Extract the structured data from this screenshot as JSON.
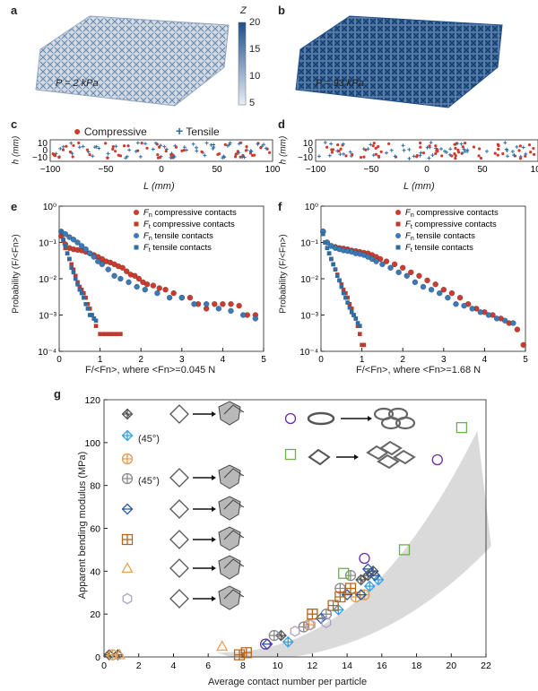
{
  "panels": {
    "a": {
      "letter": "a",
      "pressure": "P = 2 kPa"
    },
    "b": {
      "letter": "b",
      "pressure": "P = 93 kPa"
    },
    "colorbar": {
      "label": "Z",
      "ticks": [
        "20",
        "15",
        "10",
        "5"
      ],
      "colors": [
        "#1f4e8c",
        "#e8eef5"
      ]
    },
    "c": {
      "letter": "c"
    },
    "d": {
      "letter": "d"
    },
    "e": {
      "letter": "e"
    },
    "f": {
      "letter": "f"
    },
    "g": {
      "letter": "g"
    }
  },
  "strip_legend": {
    "compressive": "Compressive",
    "tensile": "Tensile"
  },
  "strip_axes": {
    "ylabel": "h (mm)",
    "xlabel": "L (mm)",
    "yticks": [
      "10",
      "0",
      "−10"
    ],
    "xticks": [
      "−100",
      "−50",
      "0",
      "50",
      "100"
    ]
  },
  "prob_legend": [
    {
      "sym": "Fn",
      "text": "compressive contacts",
      "marker": "circle",
      "color": "#d03a2c"
    },
    {
      "sym": "Ft",
      "text": "compressive contacts",
      "marker": "square",
      "color": "#c0392b"
    },
    {
      "sym": "Fn",
      "text": "tensile contacts",
      "marker": "circle",
      "color": "#3a7ab8"
    },
    {
      "sym": "Ft",
      "text": "tensile contacts",
      "marker": "square",
      "color": "#2e6da4"
    }
  ],
  "prob_axes": {
    "ylabel": "Probability (F/<Fn>)",
    "xticks": [
      "0",
      "1",
      "2",
      "3",
      "4",
      "5"
    ],
    "yticks": [
      "10⁰",
      "10⁻¹",
      "10⁻²",
      "10⁻³",
      "10⁻⁴"
    ]
  },
  "e_xlabel": "F/<Fn>, where <Fn>=0.045 N",
  "f_xlabel": "F/<Fn>, where <Fn>=1.68 N",
  "g_axes": {
    "xlabel": "Average contact number per particle",
    "ylabel": "Apparent bending modulus (MPa)",
    "xticks": [
      "0",
      "2",
      "4",
      "6",
      "8",
      "10",
      "12",
      "14",
      "16",
      "18",
      "20",
      "22"
    ],
    "yticks": [
      "0",
      "20",
      "40",
      "60",
      "80",
      "100",
      "120"
    ]
  },
  "g_legend_angle": [
    "(45°)",
    "(45°)"
  ],
  "chart_data": [
    {
      "type": "scatter",
      "panel": "e",
      "xlabel": "F/<Fn>, where <Fn>=0.045 N",
      "ylabel": "Probability (F/<Fn>)",
      "xlim": [
        0,
        5
      ],
      "ylim": [
        0.0001,
        1
      ],
      "yscale": "log",
      "series": [
        {
          "name": "Fn compressive contacts",
          "x": [
            0.05,
            0.15,
            0.25,
            0.35,
            0.45,
            0.55,
            0.65,
            0.75,
            0.85,
            0.95,
            1.05,
            1.15,
            1.25,
            1.35,
            1.45,
            1.55,
            1.65,
            1.75,
            1.85,
            1.95,
            2.05,
            2.15,
            2.3,
            2.45,
            2.6,
            2.8,
            3.0,
            3.2,
            3.4,
            3.6,
            3.8,
            4.0,
            4.2,
            4.4,
            4.6,
            4.8
          ],
          "y": [
            0.15,
            0.09,
            0.07,
            0.065,
            0.062,
            0.06,
            0.055,
            0.05,
            0.045,
            0.04,
            0.035,
            0.03,
            0.028,
            0.025,
            0.022,
            0.02,
            0.016,
            0.013,
            0.012,
            0.01,
            0.008,
            0.007,
            0.0065,
            0.0055,
            0.005,
            0.004,
            0.003,
            0.003,
            0.002,
            0.0015,
            0.002,
            0.002,
            0.002,
            0.0018,
            0.001,
            0.001
          ]
        },
        {
          "name": "Ft compressive contacts",
          "x": [
            0.05,
            0.1,
            0.15,
            0.2,
            0.25,
            0.3,
            0.35,
            0.4,
            0.45,
            0.5,
            0.55,
            0.6,
            0.65,
            0.7,
            0.75,
            0.8,
            0.85,
            0.9,
            1.0,
            1.1,
            1.2,
            1.3,
            1.4,
            1.5
          ],
          "y": [
            0.16,
            0.11,
            0.07,
            0.05,
            0.035,
            0.025,
            0.018,
            0.012,
            0.008,
            0.006,
            0.005,
            0.004,
            0.003,
            0.002,
            0.0015,
            0.001,
            0.0008,
            0.0005,
            0.0003,
            0.0003,
            0.0003,
            0.0003,
            0.0003,
            0.0003
          ]
        },
        {
          "name": "Fn tensile contacts",
          "x": [
            0.05,
            0.15,
            0.25,
            0.35,
            0.45,
            0.55,
            0.65,
            0.75,
            0.85,
            0.95,
            1.05,
            1.2,
            1.35,
            1.5,
            1.7,
            1.9,
            2.1,
            2.4,
            2.7,
            3.0,
            3.3,
            3.6,
            3.9,
            4.2,
            4.5,
            4.8
          ],
          "y": [
            0.2,
            0.17,
            0.14,
            0.12,
            0.1,
            0.08,
            0.065,
            0.05,
            0.04,
            0.03,
            0.025,
            0.018,
            0.012,
            0.01,
            0.008,
            0.006,
            0.005,
            0.004,
            0.003,
            0.003,
            0.002,
            0.002,
            0.0015,
            0.0013,
            0.001,
            0.0008
          ]
        },
        {
          "name": "Ft tensile contacts",
          "x": [
            0.05,
            0.1,
            0.15,
            0.2,
            0.25,
            0.3,
            0.35,
            0.4,
            0.45,
            0.5,
            0.55,
            0.6,
            0.65,
            0.7,
            0.75,
            0.8,
            0.85,
            0.9
          ],
          "y": [
            0.2,
            0.12,
            0.08,
            0.05,
            0.035,
            0.02,
            0.015,
            0.01,
            0.007,
            0.005,
            0.004,
            0.003,
            0.002,
            0.0015,
            0.001,
            0.001,
            0.0008,
            0.0007
          ]
        }
      ]
    },
    {
      "type": "scatter",
      "panel": "f",
      "xlabel": "F/<Fn>, where <Fn>=1.68 N",
      "ylabel": "Probability (F/<Fn>)",
      "xlim": [
        0,
        5
      ],
      "ylim": [
        0.0001,
        1
      ],
      "yscale": "log",
      "series": [
        {
          "name": "Fn compressive contacts",
          "x": [
            0.05,
            0.15,
            0.25,
            0.35,
            0.45,
            0.55,
            0.65,
            0.75,
            0.85,
            0.95,
            1.05,
            1.15,
            1.25,
            1.35,
            1.45,
            1.6,
            1.8,
            2.0,
            2.2,
            2.4,
            2.6,
            2.8,
            3.0,
            3.2,
            3.4,
            3.6,
            3.8,
            4.0,
            4.2,
            4.4,
            4.6,
            4.8,
            4.95
          ],
          "y": [
            0.2,
            0.1,
            0.08,
            0.075,
            0.07,
            0.068,
            0.065,
            0.06,
            0.058,
            0.055,
            0.052,
            0.05,
            0.045,
            0.04,
            0.035,
            0.03,
            0.025,
            0.02,
            0.015,
            0.012,
            0.009,
            0.007,
            0.005,
            0.004,
            0.003,
            0.002,
            0.0015,
            0.0012,
            0.001,
            0.0008,
            0.0006,
            0.0004,
            0.00015
          ]
        },
        {
          "name": "Ft compressive contacts",
          "x": [
            0.05,
            0.1,
            0.15,
            0.2,
            0.25,
            0.3,
            0.35,
            0.4,
            0.45,
            0.5,
            0.55,
            0.6,
            0.65,
            0.7,
            0.75,
            0.8,
            0.85,
            0.9,
            0.95,
            1.0,
            1.05
          ],
          "y": [
            0.18,
            0.1,
            0.07,
            0.05,
            0.035,
            0.025,
            0.018,
            0.013,
            0.009,
            0.007,
            0.005,
            0.004,
            0.003,
            0.002,
            0.0015,
            0.001,
            0.0008,
            0.0005,
            0.0003,
            0.00015,
            0.00015
          ]
        },
        {
          "name": "Fn tensile contacts",
          "x": [
            0.05,
            0.15,
            0.25,
            0.35,
            0.45,
            0.55,
            0.65,
            0.75,
            0.85,
            0.95,
            1.05,
            1.15,
            1.25,
            1.35,
            1.5,
            1.7,
            1.9,
            2.1,
            2.3,
            2.5,
            2.7,
            2.9,
            3.1,
            3.3,
            3.5,
            3.7,
            3.9,
            4.1,
            4.3,
            4.5,
            4.7
          ],
          "y": [
            0.2,
            0.1,
            0.08,
            0.07,
            0.065,
            0.06,
            0.058,
            0.055,
            0.05,
            0.048,
            0.045,
            0.04,
            0.035,
            0.03,
            0.025,
            0.02,
            0.015,
            0.012,
            0.008,
            0.006,
            0.005,
            0.004,
            0.003,
            0.002,
            0.0018,
            0.0015,
            0.0012,
            0.001,
            0.0008,
            0.0007,
            0.0006
          ]
        },
        {
          "name": "Ft tensile contacts",
          "x": [
            0.05,
            0.1,
            0.15,
            0.2,
            0.25,
            0.3,
            0.35,
            0.4,
            0.45,
            0.5,
            0.55,
            0.6,
            0.65,
            0.7,
            0.75,
            0.8,
            0.85,
            0.9,
            0.95
          ],
          "y": [
            0.17,
            0.1,
            0.07,
            0.05,
            0.035,
            0.025,
            0.018,
            0.012,
            0.009,
            0.006,
            0.004,
            0.003,
            0.0022,
            0.0016,
            0.0012,
            0.001,
            0.0008,
            0.0006,
            0.0005
          ]
        }
      ]
    },
    {
      "type": "scatter",
      "panel": "g",
      "xlabel": "Average contact number per particle",
      "ylabel": "Apparent bending modulus (MPa)",
      "xlim": [
        0,
        22
      ],
      "ylim": [
        0,
        120
      ],
      "series": [
        {
          "marker": "octahedron-cross",
          "color": "#555555",
          "x": [
            0.3,
            0.8,
            10.2,
            14.8,
            15.2,
            15.5
          ],
          "y": [
            1,
            1,
            10,
            36,
            38,
            40
          ]
        },
        {
          "marker": "diamond-cross",
          "color": "#3aa0e0",
          "x": [
            10.6,
            13.5,
            15.3,
            15.8
          ],
          "y": [
            7,
            22,
            33,
            36
          ]
        },
        {
          "marker": "circle-plus",
          "color": "#e39b4f",
          "x": [
            0.5,
            11.8,
            14.5,
            15.0
          ],
          "y": [
            1,
            15,
            28,
            29
          ]
        },
        {
          "marker": "circle-plus",
          "color": "#8a8a8a",
          "x": [
            9.8,
            11.5,
            12.8,
            13.6,
            14.2
          ],
          "y": [
            10,
            14,
            20,
            32,
            38
          ]
        },
        {
          "marker": "diamond-h",
          "color": "#2c5aa0",
          "x": [
            9.4,
            12.5,
            14.0,
            14.8,
            15.2,
            15.6
          ],
          "y": [
            6,
            18,
            29,
            29,
            41,
            38
          ]
        },
        {
          "marker": "square-grid",
          "color": "#b5651d",
          "x": [
            7.8,
            8.2,
            12.0,
            13.2,
            13.6,
            14.2
          ],
          "y": [
            1,
            2,
            20,
            24,
            28,
            32
          ]
        },
        {
          "marker": "triangle",
          "color": "#e8a25a",
          "x": [
            0.9,
            6.8
          ],
          "y": [
            1,
            5
          ]
        },
        {
          "marker": "hexagon",
          "color": "#b0a0c8",
          "x": [
            11.0,
            11.9,
            12.8
          ],
          "y": [
            12,
            15,
            16
          ]
        },
        {
          "marker": "circle",
          "color": "#6a2ca0",
          "x": [
            9.3,
            15.0,
            19.2
          ],
          "y": [
            6,
            46,
            92
          ]
        },
        {
          "marker": "square",
          "color": "#6ab04c",
          "x": [
            13.8,
            17.3,
            20.6
          ],
          "y": [
            39,
            50,
            107
          ]
        }
      ]
    }
  ]
}
